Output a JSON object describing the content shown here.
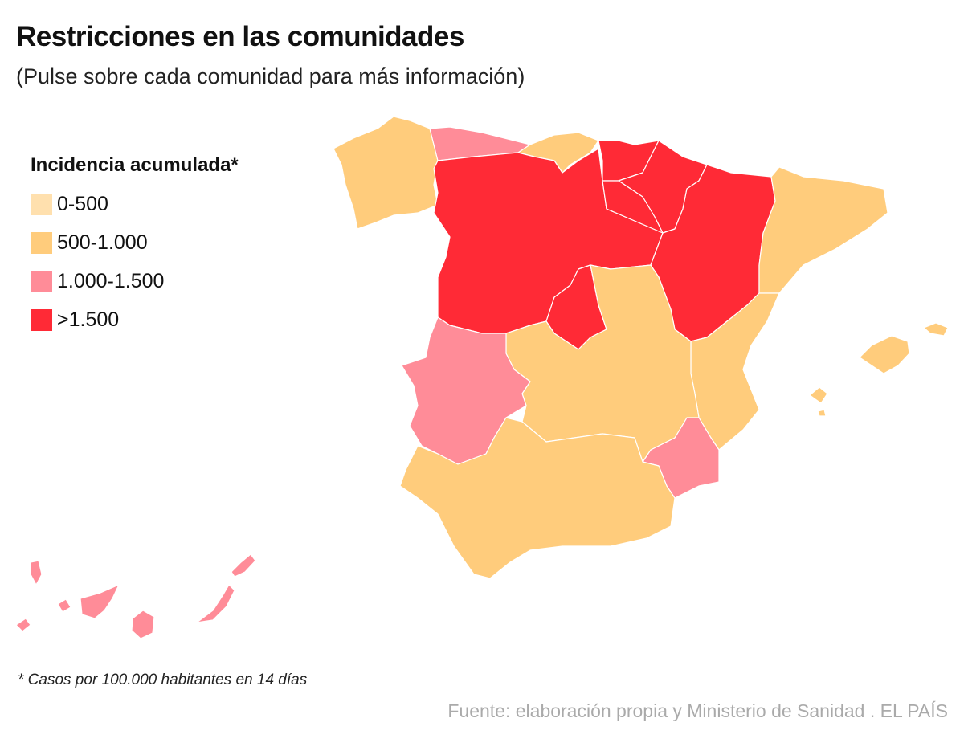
{
  "header": {
    "title": "Restricciones en las comunidades",
    "subtitle": "(Pulse sobre cada comunidad para más información)"
  },
  "legend": {
    "title": "Incidencia acumulada*",
    "items": [
      {
        "label": "0-500",
        "color": "#FFE0AE"
      },
      {
        "label": "500-1.000",
        "color": "#FFCC7C"
      },
      {
        "label": "1.000-1.500",
        "color": "#FF8C98"
      },
      {
        "label": ">1.500",
        "color": "#FF2A36"
      }
    ]
  },
  "map": {
    "regions": [
      {
        "id": "galicia",
        "class": "500-1.000"
      },
      {
        "id": "asturias",
        "class": "1.000-1.500"
      },
      {
        "id": "cantabria",
        "class": "500-1.000"
      },
      {
        "id": "castilla-y-leon",
        "class": ">1.500"
      },
      {
        "id": "pais-vasco",
        "class": ">1.500"
      },
      {
        "id": "navarra",
        "class": ">1.500"
      },
      {
        "id": "la-rioja",
        "class": ">1.500"
      },
      {
        "id": "aragon",
        "class": ">1.500"
      },
      {
        "id": "madrid",
        "class": ">1.500"
      },
      {
        "id": "cataluna",
        "class": "500-1.000"
      },
      {
        "id": "valencia",
        "class": "500-1.000"
      },
      {
        "id": "murcia",
        "class": "1.000-1.500"
      },
      {
        "id": "castilla-la-mancha",
        "class": "500-1.000"
      },
      {
        "id": "extremadura",
        "class": "1.000-1.500"
      },
      {
        "id": "andalucia",
        "class": "500-1.000"
      },
      {
        "id": "baleares",
        "class": "500-1.000"
      },
      {
        "id": "canarias",
        "class": "1.000-1.500"
      }
    ]
  },
  "footer": {
    "note": "* Casos por 100.000 habitantes en 14 días",
    "source": "Fuente: elaboración propia y Ministerio de Sanidad . EL PAÍS"
  }
}
